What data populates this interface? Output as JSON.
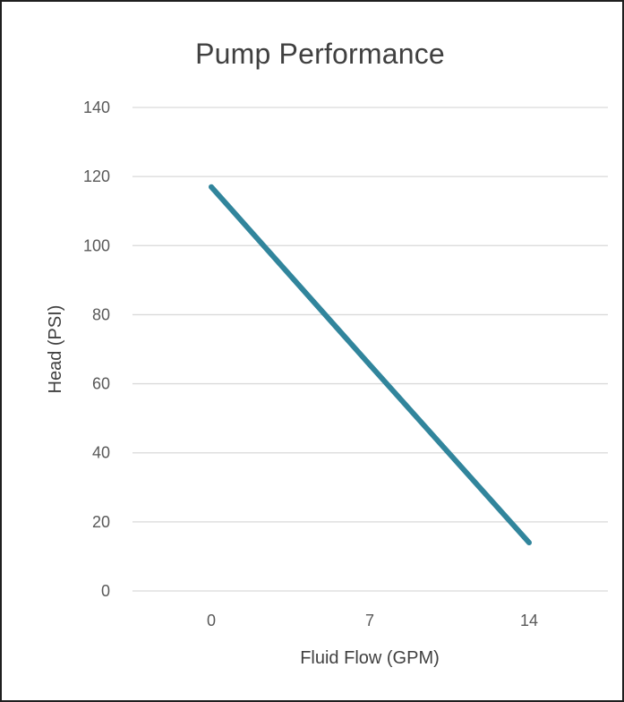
{
  "chart_data": {
    "type": "line",
    "title": "Pump Performance",
    "xlabel": "Fluid Flow (GPM)",
    "ylabel": "Head (PSI)",
    "x": [
      0,
      7,
      14
    ],
    "categories": [
      "0",
      "7",
      "14"
    ],
    "series": [
      {
        "values": [
          117,
          65.5,
          14
        ]
      }
    ],
    "ylim": [
      0,
      140
    ],
    "yticks": [
      0,
      20,
      40,
      60,
      80,
      100,
      120,
      140
    ],
    "grid": true,
    "legend": "none",
    "colors": {
      "line": "#31859c",
      "grid": "#d9d9d9",
      "text": "#595959"
    }
  }
}
